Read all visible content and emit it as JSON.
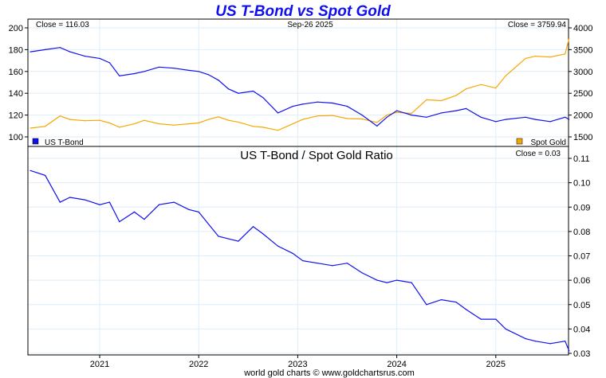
{
  "chart_data": [
    {
      "type": "line",
      "title": "US T-Bond vs Spot Gold",
      "date_label": "Sep-26  2025",
      "close_left": "Close = 116.03",
      "close_right": "Close = 3759.94",
      "left_axis": {
        "ylim": [
          100,
          200
        ],
        "ticks": [
          100,
          120,
          140,
          160,
          180,
          200
        ]
      },
      "right_axis": {
        "ylim": [
          1500,
          4000
        ],
        "ticks": [
          1500,
          2000,
          2500,
          3000,
          3500,
          4000
        ]
      },
      "x": [
        2020.3,
        2020.45,
        2020.6,
        2020.7,
        2020.85,
        2021.0,
        2021.1,
        2021.2,
        2021.35,
        2021.45,
        2021.6,
        2021.75,
        2021.9,
        2022.0,
        2022.1,
        2022.2,
        2022.3,
        2022.4,
        2022.55,
        2022.65,
        2022.8,
        2022.95,
        2023.05,
        2023.2,
        2023.35,
        2023.5,
        2023.65,
        2023.8,
        2023.9,
        2024.0,
        2024.15,
        2024.3,
        2024.45,
        2024.6,
        2024.7,
        2024.85,
        2025.0,
        2025.1,
        2025.3,
        2025.4,
        2025.55,
        2025.7,
        2025.74
      ],
      "series": [
        {
          "name": "US T-Bond",
          "axis": "left",
          "color": "#1010ee",
          "values": [
            178,
            180,
            182,
            178,
            174,
            172,
            168,
            156,
            158,
            160,
            164,
            163,
            161,
            160,
            157,
            152,
            144,
            140,
            142,
            136,
            122,
            128,
            130,
            132,
            131,
            128,
            120,
            110,
            118,
            124,
            120,
            118,
            122,
            124,
            126,
            118,
            114,
            116,
            118,
            116,
            114,
            118,
            116.03
          ]
        },
        {
          "name": "Spot Gold",
          "axis": "right",
          "color": "#f5a800",
          "values": [
            1700,
            1740,
            1980,
            1900,
            1870,
            1880,
            1820,
            1720,
            1800,
            1880,
            1800,
            1770,
            1800,
            1820,
            1900,
            1960,
            1880,
            1840,
            1740,
            1720,
            1650,
            1800,
            1900,
            1980,
            1990,
            1920,
            1910,
            1830,
            2000,
            2060,
            2040,
            2350,
            2330,
            2450,
            2600,
            2700,
            2620,
            2900,
            3300,
            3350,
            3330,
            3400,
            3759.94
          ]
        }
      ],
      "legend": [
        "US T-Bond",
        "Spot Gold"
      ]
    },
    {
      "type": "line",
      "title": "US T-Bond  /  Spot Gold Ratio",
      "close": "Close = 0.03",
      "ylim": [
        0.03,
        0.11
      ],
      "ticks": [
        "0.03",
        "0.04",
        "0.05",
        "0.06",
        "0.07",
        "0.08",
        "0.09",
        "0.10",
        "0.11"
      ],
      "xticks": [
        "2021",
        "2022",
        "2023",
        "2024",
        "2025"
      ],
      "series": [
        {
          "name": "Ratio",
          "color": "#1010ee",
          "values": [
            0.105,
            0.103,
            0.092,
            0.094,
            0.093,
            0.091,
            0.092,
            0.084,
            0.088,
            0.085,
            0.091,
            0.092,
            0.089,
            0.088,
            0.083,
            0.078,
            0.077,
            0.076,
            0.082,
            0.079,
            0.074,
            0.071,
            0.068,
            0.067,
            0.066,
            0.067,
            0.063,
            0.06,
            0.059,
            0.06,
            0.059,
            0.05,
            0.052,
            0.051,
            0.048,
            0.044,
            0.044,
            0.04,
            0.036,
            0.035,
            0.034,
            0.035,
            0.031
          ]
        }
      ]
    }
  ],
  "footer": "world gold charts © www.goldchartsrus.com"
}
